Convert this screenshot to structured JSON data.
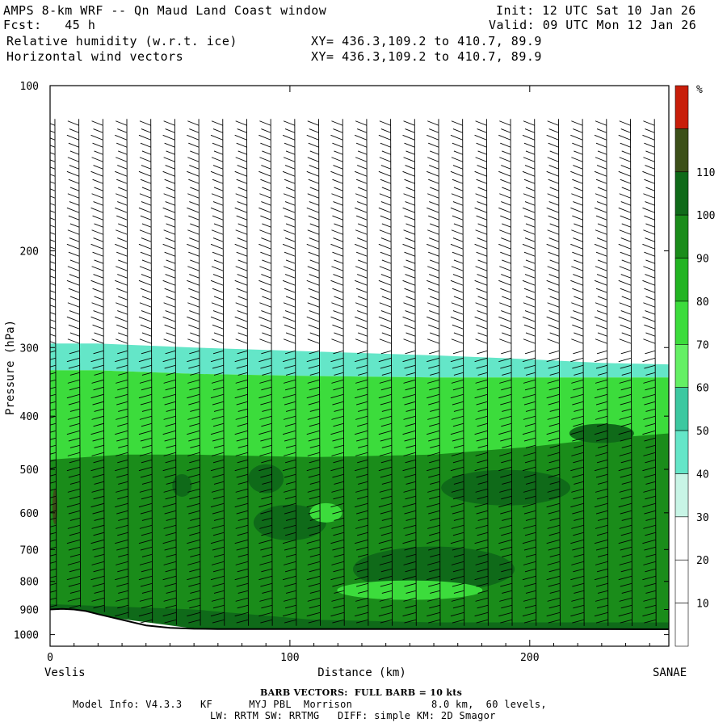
{
  "header": {
    "title": "AMPS 8-km WRF -- Qn Maud Land Coast window",
    "fcst": "Fcst:   45 h",
    "init": "Init: 12 UTC Sat 10 Jan 26",
    "valid": "Valid: 09 UTC Mon 12 Jan 26",
    "field1": "Relative humidity (w.r.t. ice)",
    "field2": "Horizontal wind vectors",
    "xy1": "XY= 436.3,109.2 to 410.7, 89.9",
    "xy2": "XY= 436.3,109.2 to 410.7, 89.9"
  },
  "chart_data": {
    "type": "heatmap",
    "xlabel": "Distance (km)",
    "ylabel": "Pressure (hPa)",
    "xlim": [
      0,
      258
    ],
    "ylim": [
      100,
      1050
    ],
    "y_scale": "log",
    "xticks": [
      0,
      100,
      200
    ],
    "yticks": [
      100,
      200,
      300,
      400,
      500,
      600,
      700,
      800,
      900,
      1000
    ],
    "x_end_labels": {
      "left": "Veslis",
      "right": "SANAE"
    },
    "colorbar": {
      "unit": "%",
      "levels": [
        10,
        20,
        30,
        40,
        50,
        60,
        70,
        80,
        90,
        100,
        110
      ],
      "colors": [
        "#ffffff",
        "#ffffff",
        "#ffffff",
        "#c8f5e6",
        "#64e6c8",
        "#3cc8a0",
        "#64f064",
        "#3cdc3c",
        "#22b422",
        "#1a8c1a",
        "#0f6a19",
        "#3c5019",
        "#c81e0a"
      ]
    },
    "bands": [
      {
        "x": [
          0,
          20,
          60,
          110,
          160,
          200,
          230,
          258
        ],
        "top": [
          295,
          295,
          300,
          305,
          310,
          315,
          320,
          322
        ],
        "bottom": [
          330,
          330,
          335,
          338,
          340,
          340,
          340,
          340
        ],
        "rh": 40
      },
      {
        "x": [
          0,
          20,
          60,
          110,
          160,
          200,
          230,
          258
        ],
        "top": [
          330,
          330,
          335,
          338,
          340,
          340,
          340,
          340
        ],
        "bottom": [
          900,
          903,
          975,
          978,
          978,
          978,
          978,
          980
        ],
        "rh": 75
      },
      {
        "x": [
          0,
          30,
          60,
          110,
          160,
          200,
          230,
          258
        ],
        "top": [
          480,
          470,
          470,
          475,
          470,
          455,
          440,
          430
        ],
        "bottom": [
          900,
          903,
          975,
          978,
          978,
          978,
          978,
          980
        ],
        "rh": 90
      },
      {
        "x": [
          0,
          60,
          110,
          160,
          200,
          258
        ],
        "top": [
          880,
          900,
          940,
          950,
          950,
          950
        ],
        "bottom": [
          900,
          975,
          978,
          978,
          978,
          980
        ],
        "rh": 100
      }
    ],
    "blobs": [
      {
        "x": 90,
        "p": 520,
        "rx": 22,
        "ry": 18,
        "rh": 100
      },
      {
        "x": 55,
        "p": 535,
        "rx": 12,
        "ry": 14,
        "rh": 100
      },
      {
        "x": 190,
        "p": 540,
        "rx": 80,
        "ry": 22,
        "rh": 100
      },
      {
        "x": 100,
        "p": 625,
        "rx": 45,
        "ry": 22,
        "rh": 100
      },
      {
        "x": 230,
        "p": 430,
        "rx": 40,
        "ry": 12,
        "rh": 100
      },
      {
        "x": 160,
        "p": 760,
        "rx": 100,
        "ry": 28,
        "rh": 100
      },
      {
        "x": 150,
        "p": 830,
        "rx": 90,
        "ry": 12,
        "rh": 75
      },
      {
        "x": 115,
        "p": 600,
        "rx": 20,
        "ry": 12,
        "rh": 75
      },
      {
        "x": 2,
        "p": 585,
        "rx": 3,
        "ry": 22,
        "rh": 115
      }
    ],
    "terrain": {
      "x": [
        0,
        5,
        10,
        15,
        20,
        30,
        40,
        50,
        60,
        70,
        100,
        150,
        200,
        258
      ],
      "p": [
        900,
        898,
        900,
        906,
        918,
        940,
        962,
        972,
        976,
        977,
        977,
        977,
        977,
        978
      ]
    },
    "wind": {
      "columns_km": 20,
      "barb_kts": 10,
      "direction_deg": 250
    }
  },
  "footer": {
    "barb_note": "BARB VECTORS:  FULL BARB = 10 kts",
    "model_line1": "Model Info: V4.3.3   KF      MYJ PBL  Morrison             8.0 km,  60 levels,",
    "model_line2": "LW: RRTM SW: RRTMG   DIFF: simple KM: 2D Smagor"
  }
}
